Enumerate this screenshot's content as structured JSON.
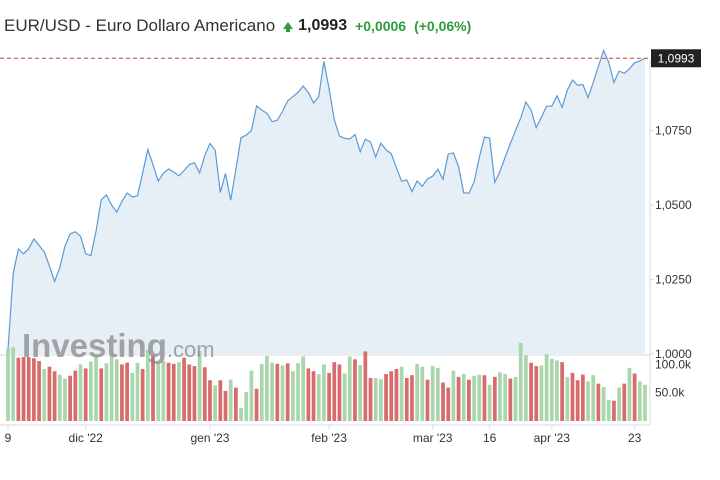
{
  "header": {
    "title": "EUR/USD - Euro Dollaro Americano",
    "direction_icon": "arrow-up-icon",
    "price": "1,0993",
    "change": "+0,0006",
    "change_pct": "(+0,06%)"
  },
  "brand": {
    "name": "Investing",
    "suffix": ".com"
  },
  "colors": {
    "line": "#5b9bd5",
    "area": "#e6eef6",
    "reference_line": "#b34747",
    "up_bar": "#a9d6ad",
    "down_bar": "#d86b6b",
    "positive": "#2d9c3c",
    "price_label_bg": "#222222"
  },
  "chart_data": {
    "type": "area",
    "price_label": "1,0993",
    "reference_value": 1.0993,
    "y_ticks": [
      {
        "value": 1.0,
        "label": "1,0000"
      },
      {
        "value": 1.025,
        "label": "1,0250"
      },
      {
        "value": 1.05,
        "label": "1,0500"
      },
      {
        "value": 1.075,
        "label": "1,0750"
      }
    ],
    "ylim": [
      0.9996,
      1.1004
    ],
    "x_ticks": [
      {
        "index": 0,
        "label": "9"
      },
      {
        "index": 15,
        "label": "dic '22"
      },
      {
        "index": 39,
        "label": "gen '23"
      },
      {
        "index": 62,
        "label": "feb '23"
      },
      {
        "index": 82,
        "label": "mar '23"
      },
      {
        "index": 93,
        "label": "16"
      },
      {
        "index": 105,
        "label": "apr '23"
      },
      {
        "index": 121,
        "label": "23"
      }
    ],
    "series": [
      {
        "values": [
          1.0015,
          1.027,
          1.0352,
          1.0336,
          1.0353,
          1.0386,
          1.0364,
          1.0342,
          1.0295,
          1.0243,
          1.029,
          1.0362,
          1.0403,
          1.041,
          1.0395,
          1.0336,
          1.033,
          1.0412,
          1.0517,
          1.0534,
          1.05,
          1.0476,
          1.0512,
          1.054,
          1.0527,
          1.0531,
          1.0609,
          1.0686,
          1.0636,
          1.058,
          1.0607,
          1.0621,
          1.0611,
          1.0598,
          1.0616,
          1.0636,
          1.0642,
          1.0608,
          1.0666,
          1.0707,
          1.0684,
          1.0542,
          1.0606,
          1.0516,
          1.062,
          1.0726,
          1.0735,
          1.075,
          1.0833,
          1.0819,
          1.0808,
          1.078,
          1.0785,
          1.0814,
          1.085,
          1.0864,
          1.0878,
          1.09,
          1.0877,
          1.0843,
          1.0864,
          1.0983,
          1.089,
          1.0787,
          1.0732,
          1.0724,
          1.0722,
          1.0737,
          1.0679,
          1.0721,
          1.0712,
          1.0661,
          1.0708,
          1.0685,
          1.0673,
          1.0625,
          1.058,
          1.0584,
          1.0545,
          1.0581,
          1.0563,
          1.0588,
          1.0597,
          1.062,
          1.0586,
          1.0671,
          1.0675,
          1.0629,
          1.0541,
          1.054,
          1.0577,
          1.066,
          1.0728,
          1.0725,
          1.0576,
          1.0613,
          1.0661,
          1.0706,
          1.075,
          1.0792,
          1.0846,
          1.0819,
          1.076,
          1.0795,
          1.0832,
          1.0832,
          1.0867,
          1.0828,
          1.0886,
          1.092,
          1.0902,
          1.0905,
          1.0861,
          1.0911,
          1.0966,
          1.1019,
          1.098,
          1.0912,
          1.095,
          1.0943,
          1.0958,
          1.0978,
          1.0984,
          1.0993
        ]
      }
    ],
    "volume": {
      "y_ticks": [
        {
          "value": 100000,
          "label": "100.0k"
        },
        {
          "value": 50000,
          "label": "50.0k"
        }
      ],
      "ylim": [
        0,
        140000
      ],
      "direction": [
        1,
        1,
        0,
        0,
        0,
        0,
        0,
        1,
        0,
        0,
        1,
        1,
        0,
        0,
        1,
        0,
        1,
        1,
        0,
        1,
        1,
        1,
        0,
        0,
        1,
        1,
        0,
        1,
        0,
        1,
        1,
        0,
        0,
        1,
        0,
        0,
        0,
        1,
        0,
        0,
        1,
        0,
        0,
        1,
        0,
        1,
        1,
        1,
        0,
        1,
        1,
        1,
        0,
        1,
        0,
        1,
        1,
        1,
        0,
        0,
        1,
        1,
        0,
        0,
        0,
        1,
        1,
        0,
        1,
        0,
        0,
        1,
        1,
        0,
        0,
        0,
        1,
        0,
        0,
        1,
        1,
        0,
        1,
        1,
        0,
        0,
        1,
        0,
        1,
        0,
        1,
        1,
        0,
        1,
        0,
        1,
        1,
        0,
        1,
        1,
        1,
        0,
        0,
        1,
        1,
        1,
        1,
        0,
        1,
        0,
        0,
        0,
        1,
        1,
        0,
        1,
        1,
        0,
        1,
        0,
        1,
        0,
        1,
        1
      ],
      "values": [
        128000,
        130000,
        112000,
        113000,
        113000,
        111000,
        106000,
        92000,
        96000,
        88000,
        82000,
        75000,
        80000,
        89000,
        100000,
        93000,
        105000,
        115000,
        93000,
        102000,
        114000,
        109000,
        100000,
        103000,
        85000,
        103000,
        92000,
        125000,
        115000,
        103000,
        106000,
        103000,
        101000,
        104000,
        112000,
        100000,
        97000,
        124000,
        95000,
        72000,
        63000,
        72000,
        53000,
        73000,
        59000,
        23000,
        51000,
        89000,
        57000,
        101000,
        115000,
        103000,
        101000,
        98000,
        102000,
        88000,
        102000,
        114000,
        93000,
        88000,
        83000,
        100000,
        85000,
        104000,
        100000,
        84000,
        114000,
        109000,
        99000,
        123000,
        76000,
        76000,
        74000,
        83000,
        88000,
        92000,
        96000,
        76000,
        81000,
        101000,
        96000,
        73000,
        97000,
        94000,
        68000,
        59000,
        89000,
        78000,
        83000,
        73000,
        80000,
        82000,
        81000,
        64000,
        78000,
        86000,
        83000,
        75000,
        78000,
        138000,
        116000,
        103000,
        97000,
        98000,
        118000,
        110000,
        107000,
        104000,
        78000,
        85000,
        72000,
        82000,
        70000,
        81000,
        66000,
        60000,
        37000,
        36000,
        59000,
        66000,
        94000,
        84000,
        70000,
        64000
      ]
    }
  }
}
